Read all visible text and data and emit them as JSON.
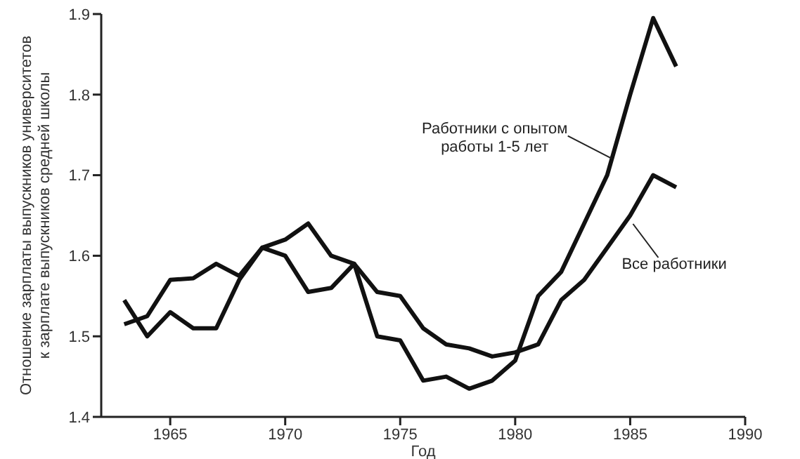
{
  "chart_data": {
    "type": "line",
    "xlabel": "Год",
    "ylabel": "Отношение зарплаты выпускников университетов\nк зарплате выпускников средней школы",
    "x": [
      1963,
      1964,
      1965,
      1966,
      1967,
      1968,
      1969,
      1970,
      1971,
      1972,
      1973,
      1974,
      1975,
      1976,
      1977,
      1978,
      1979,
      1980,
      1981,
      1982,
      1983,
      1984,
      1985,
      1986,
      1987
    ],
    "series": [
      {
        "name": "Работники с опытом работы 1-5 лет",
        "color": "#111111",
        "values": [
          1.545,
          1.5,
          1.53,
          1.51,
          1.51,
          1.57,
          1.61,
          1.6,
          1.555,
          1.56,
          1.59,
          1.5,
          1.495,
          1.445,
          1.45,
          1.435,
          1.445,
          1.47,
          1.55,
          1.58,
          1.64,
          1.7,
          1.8,
          1.895,
          1.835
        ]
      },
      {
        "name": "Все работники",
        "color": "#111111",
        "values": [
          1.515,
          1.525,
          1.57,
          1.572,
          1.59,
          1.575,
          1.61,
          1.62,
          1.64,
          1.6,
          1.59,
          1.555,
          1.55,
          1.51,
          1.49,
          1.485,
          1.475,
          1.48,
          1.49,
          1.545,
          1.57,
          1.61,
          1.65,
          1.7,
          1.685
        ]
      }
    ],
    "xlim": [
      1962,
      1990
    ],
    "xticks": [
      1965,
      1970,
      1975,
      1980,
      1985,
      1990
    ],
    "ylim": [
      1.4,
      1.9
    ],
    "yticks": [
      1.4,
      1.5,
      1.6,
      1.7,
      1.8,
      1.9
    ],
    "grid": false,
    "legend": false,
    "marker": "none",
    "line_style": "solid"
  }
}
